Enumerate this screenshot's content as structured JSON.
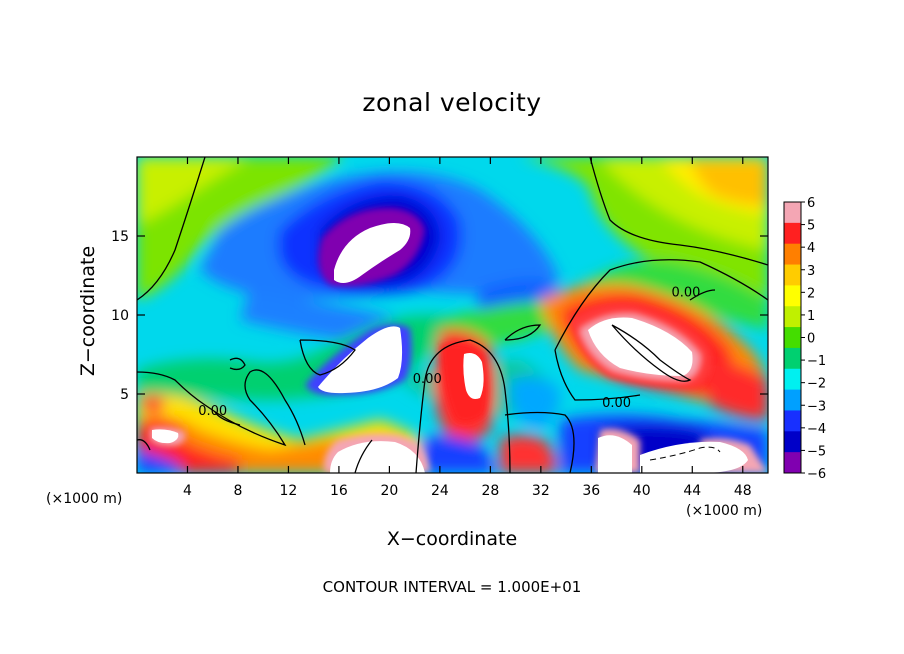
{
  "chart_data": {
    "type": "heatmap",
    "title": "zonal velocity",
    "xlabel": "X−coordinate",
    "ylabel": "Z−coordinate",
    "x_unit_label": "(×1000 m)",
    "x_ticks": [
      4,
      8,
      12,
      16,
      20,
      24,
      28,
      32,
      36,
      40,
      44,
      48
    ],
    "y_ticks": [
      5,
      10,
      15
    ],
    "xlim": [
      0,
      50
    ],
    "ylim": [
      0,
      20
    ],
    "colorbar": {
      "ticks": [
        6,
        5,
        4,
        3,
        2,
        1,
        0,
        -1,
        -2,
        -3,
        -4,
        -5,
        -6
      ],
      "tick_labels": [
        "6",
        "5",
        "4",
        "3",
        "2",
        "1",
        "0",
        "−1",
        "−2",
        "−3",
        "−4",
        "−5",
        "−6"
      ],
      "colors": [
        "#f4a6b4",
        "#ff2020",
        "#ff7f00",
        "#ffcc00",
        "#ffff00",
        "#c0f000",
        "#44dd00",
        "#00d070",
        "#00f0f0",
        "#00a0ff",
        "#1830ff",
        "#0000c8",
        "#8000b0"
      ],
      "range": [
        -6,
        6
      ]
    },
    "contour_labels": [
      {
        "text": "0.00",
        "x": 6,
        "y": 4
      },
      {
        "text": "0.00",
        "x": 23,
        "y": 6
      },
      {
        "text": "0.00",
        "x": 38,
        "y": 4.5
      },
      {
        "text": "0.00",
        "x": 43.5,
        "y": 11.5
      }
    ],
    "footer": "CONTOUR INTERVAL = 1.000E+01"
  }
}
